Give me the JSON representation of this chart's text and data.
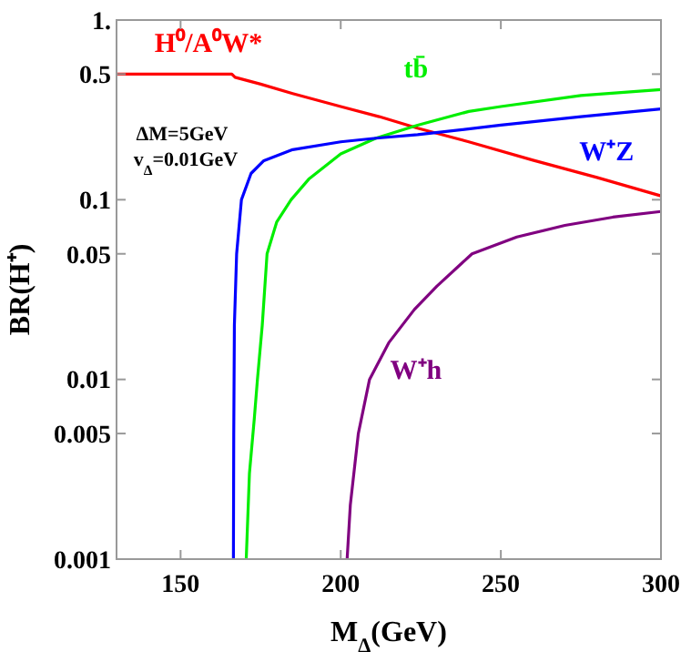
{
  "chart_data": {
    "type": "line",
    "xlabel": "M$_{Δ}$(GeV)",
    "ylabel": "BR(H⁺)",
    "log": "y",
    "grid": false,
    "marker": "none",
    "line_style": "solid",
    "xlim": [
      130,
      300
    ],
    "xticks": [
      150,
      200,
      250,
      300
    ],
    "ylim": [
      0.001,
      1
    ],
    "yticks": [
      {
        "value": 1,
        "label": "1."
      },
      0.5,
      0.1,
      0.05,
      0.01,
      0.005,
      0.001
    ],
    "annotations": [
      "ΔM=5GeV",
      "v$_{Δ}$=0.01GeV"
    ],
    "series": [
      {
        "name": "H⁰/A⁰W*",
        "color": "#ff0000",
        "x": [
          130,
          140,
          150,
          160,
          166,
          167,
          175,
          185,
          200,
          212,
          224,
          240,
          260,
          280,
          300
        ],
        "values": [
          0.5,
          0.5,
          0.5,
          0.5,
          0.5,
          0.48,
          0.44,
          0.39,
          0.33,
          0.29,
          0.25,
          0.21,
          0.166,
          0.133,
          0.105
        ]
      },
      {
        "name": "tb̄",
        "color": "#00ee00",
        "x": [
          170.5,
          171.5,
          173,
          174,
          175.5,
          177,
          180,
          184.5,
          190,
          200,
          211,
          224,
          240,
          250,
          275,
          300
        ],
        "values": [
          0.001,
          0.003,
          0.006,
          0.01,
          0.02,
          0.05,
          0.075,
          0.1,
          0.13,
          0.18,
          0.22,
          0.26,
          0.31,
          0.33,
          0.38,
          0.41
        ]
      },
      {
        "name": "W⁺Z",
        "color": "#0000ff",
        "x": [
          166.5,
          166.6,
          166.8,
          167.5,
          169,
          172,
          176,
          185,
          200,
          211,
          224,
          250,
          275,
          300
        ],
        "values": [
          0.001,
          0.005,
          0.02,
          0.05,
          0.1,
          0.14,
          0.165,
          0.19,
          0.21,
          0.22,
          0.23,
          0.26,
          0.29,
          0.32
        ]
      },
      {
        "name": "W⁺h",
        "color": "#800080",
        "x": [
          202,
          203,
          205.5,
          209,
          215,
          223,
          230,
          241,
          255,
          270,
          285,
          300
        ],
        "values": [
          0.001,
          0.002,
          0.005,
          0.01,
          0.016,
          0.0245,
          0.033,
          0.05,
          0.062,
          0.072,
          0.08,
          0.086
        ]
      }
    ]
  }
}
